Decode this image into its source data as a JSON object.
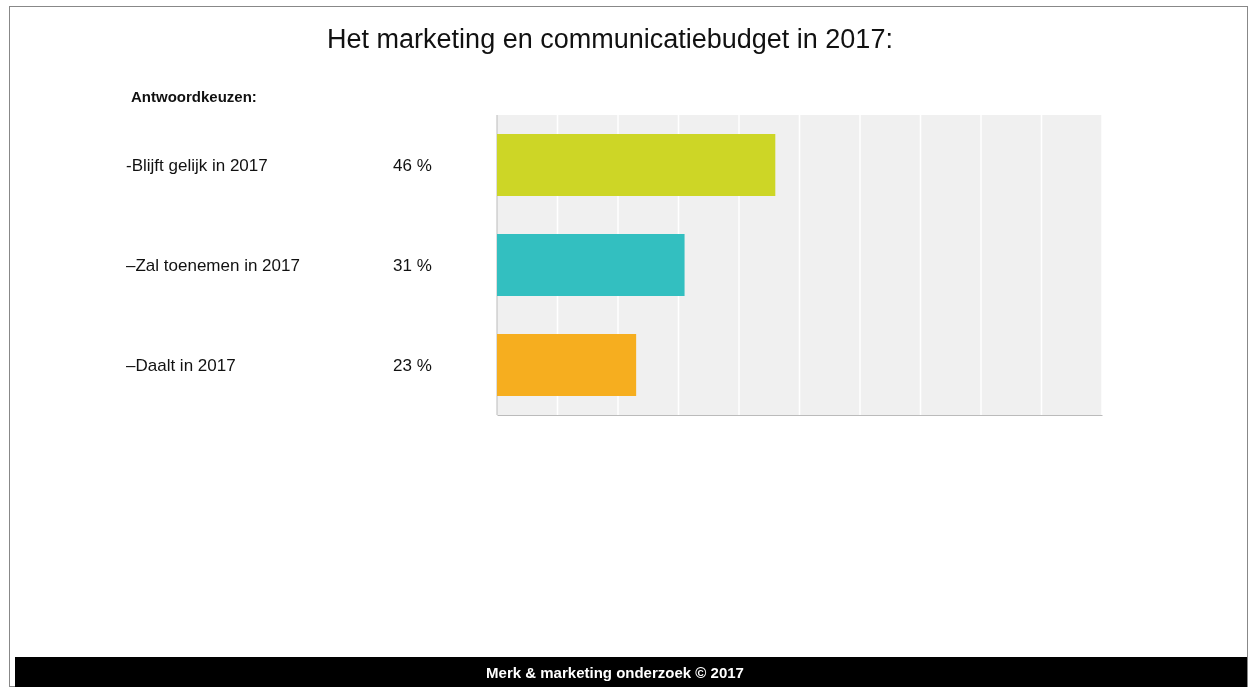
{
  "chart_data": {
    "type": "bar",
    "orientation": "horizontal",
    "title": "Het marketing en communicatiebudget in 2017:",
    "subtitle": "Antwoordkeuzen:",
    "categories": [
      "-Blijft gelijk in 2017",
      "–Zal toenemen in 2017",
      "–Daalt in 2017"
    ],
    "values": [
      46,
      31,
      23
    ],
    "colors": [
      "#cdd626",
      "#33bfc0",
      "#f6ae1f"
    ],
    "value_labels": [
      "46 %",
      "31 %",
      "23 %"
    ],
    "xlim": [
      0,
      100
    ],
    "xticks": [
      {
        "value": 0,
        "label": null
      },
      {
        "value": 10,
        "label": null
      },
      {
        "value": 20,
        "label": null
      },
      {
        "value": 30,
        "label": null
      },
      {
        "value": 40,
        "label": null
      },
      {
        "value": 50,
        "label": null
      },
      {
        "value": 60,
        "label": null
      },
      {
        "value": 70,
        "label": null
      },
      {
        "value": 80,
        "label": null
      },
      {
        "value": 90,
        "label": null
      },
      {
        "value": 100,
        "label": null
      }
    ],
    "grid": "x",
    "annotations": [
      "Merk & marketing onderzoek © 2017"
    ]
  }
}
